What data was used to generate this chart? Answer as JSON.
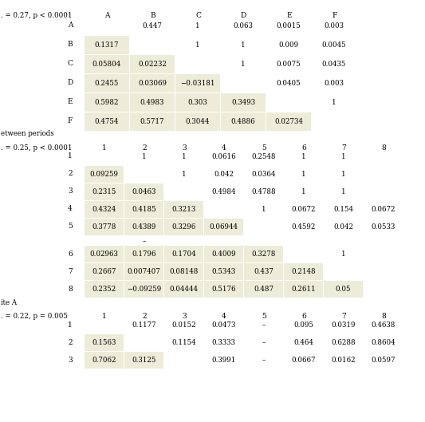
{
  "table_bg": "#edecd8",
  "white_color": "#ffffff",
  "section1": {
    "header_text": ". = 0.27, p < 0.0001",
    "col_labels": [
      "A",
      "B",
      "C",
      "D",
      "E",
      "F"
    ],
    "row_labels": [
      "A",
      "B",
      "C",
      "D",
      "E",
      "F"
    ],
    "upper_values": {
      "A": {
        "B": "0.447",
        "C": "1",
        "D": "0.063",
        "E": "0.0015",
        "F": "0.003"
      },
      "B": {
        "C": "1",
        "D": "1",
        "E": "0.009",
        "F": "0.0045"
      },
      "C": {
        "D": "1",
        "E": "0.0075",
        "F": "0.0435"
      },
      "D": {
        "E": "0.0405",
        "F": "0.003"
      },
      "E": {
        "F": "1"
      },
      "F": {}
    },
    "lower_values": {
      "B": {
        "A": "0.1317"
      },
      "C": {
        "A": "0.05804",
        "B": "0.02232"
      },
      "D": {
        "A": "0.2455",
        "B": "0.03069",
        "C": "−0.03181"
      },
      "E": {
        "A": "0.5982",
        "B": "0.4983",
        "C": "0.303",
        "D": "0.3493"
      },
      "F": {
        "A": "0.4754",
        "B": "0.5717",
        "C": "0.3044",
        "D": "0.4886",
        "E": "0.02734"
      }
    }
  },
  "between_periods_label": "etween periods",
  "section2": {
    "header_text": ". = 0.25, p < 0.0001",
    "col_labels": [
      "1",
      "2",
      "3",
      "4",
      "5",
      "6",
      "7",
      "8"
    ],
    "row_labels": [
      "1",
      "2",
      "3",
      "4",
      "5",
      "6",
      "7",
      "8"
    ],
    "upper_values": {
      "1": {
        "2": "1",
        "3": "1",
        "4": "0.0616",
        "5": "0.2548",
        "6": "1",
        "7": "1"
      },
      "2": {
        "3": "1",
        "4": "0.042",
        "5": "0.0364",
        "6": "1",
        "7": "1"
      },
      "3": {
        "4": "0.4984",
        "5": "0.4788",
        "6": "1",
        "7": "1"
      },
      "4": {
        "5": "1",
        "6": "0.0672",
        "7": "0.154",
        "8": "0.0672"
      },
      "5": {
        "6": "0.4592",
        "7": "0.042",
        "8": "0.0533"
      },
      "6": {
        "7": "1"
      },
      "7": {},
      "8": {}
    },
    "lower_values": {
      "2": {
        "1": "0.09259"
      },
      "3": {
        "1": "0.2315",
        "2": "0.0463"
      },
      "4": {
        "1": "0.4324",
        "2": "0.4185",
        "3": "0.3213"
      },
      "5": {
        "1": "0.3778",
        "2": "0.4389",
        "3": "0.3296",
        "4": "0.06944"
      },
      "6": {
        "1": "0.02963",
        "2": "0.1796",
        "3": "0.1704",
        "4": "0.4009",
        "5": "0.3278"
      },
      "7": {
        "1": "0.2667",
        "2": "0.007407",
        "3": "0.08148",
        "4": "0.5343",
        "5": "0.437",
        "6": "0.2148"
      },
      "8": {
        "1": "0.2352",
        "2": "−0.09259",
        "3": "0.04444",
        "4": "0.5176",
        "5": "0.487",
        "6": "0.2611",
        "7": "0.05"
      }
    }
  },
  "site_a_label": "ite A",
  "section3": {
    "header_text": ". = 0.22, p = 0.005",
    "col_labels": [
      "1",
      "2",
      "3",
      "4",
      "5",
      "6",
      "7",
      "8"
    ],
    "row_labels": [
      "1",
      "2",
      "3"
    ],
    "upper_values": {
      "1": {
        "2": "0.1177",
        "3": "0.0152",
        "4": "0.0473",
        "5": "–",
        "6": "0.095",
        "7": "0.0319",
        "8": "0.4638"
      },
      "2": {
        "3": "0.1154",
        "4": "0.3333",
        "5": "–",
        "6": "0.464",
        "7": "0.6288",
        "8": "0.8604"
      },
      "3": {
        "4": "0.3991",
        "5": "–",
        "6": "0.0667",
        "7": "0.0162",
        "8": "0.0597"
      }
    },
    "lower_values": {
      "2": {
        "1": "0.1563"
      },
      "3": {
        "1": "0.7062",
        "2": "0.3125"
      }
    }
  }
}
